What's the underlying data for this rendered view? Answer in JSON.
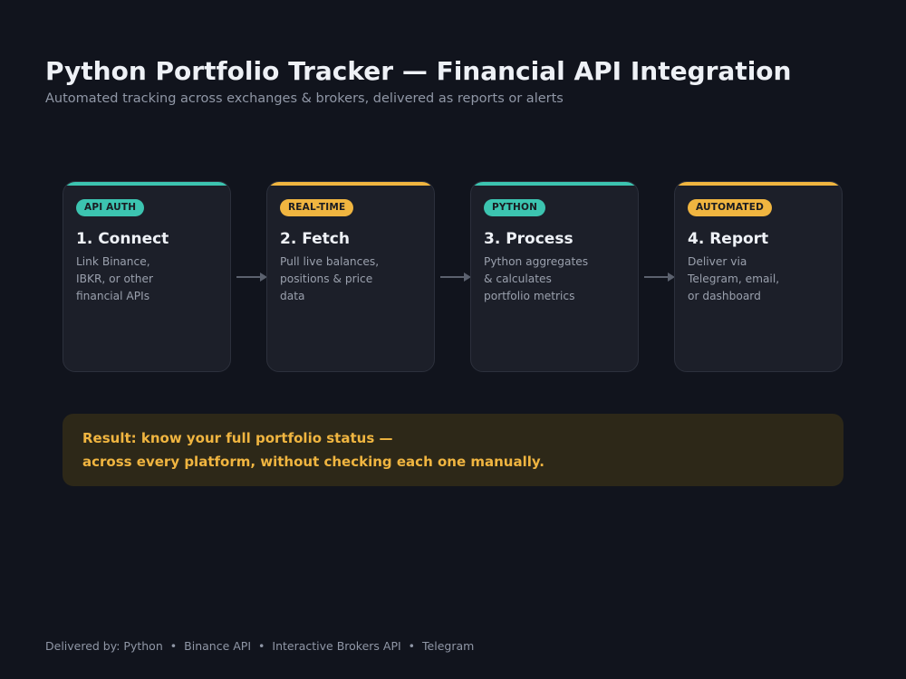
{
  "header": {
    "title": "Python Portfolio Tracker — Financial API Integration",
    "subtitle": "Automated tracking across exchanges & brokers, delivered as reports or alerts"
  },
  "colors": {
    "teal": "#3cc4b0",
    "amber": "#f0b540",
    "background": "#11141d",
    "card": "#1c1f29"
  },
  "steps": [
    {
      "badge": "API AUTH",
      "title": "1. Connect",
      "desc": [
        "Link Binance,",
        "IBKR, or other",
        "financial APIs"
      ]
    },
    {
      "badge": "REAL-TIME",
      "title": "2. Fetch",
      "desc": [
        "Pull live balances,",
        "positions & price",
        "data"
      ]
    },
    {
      "badge": "PYTHON",
      "title": "3. Process",
      "desc": [
        "Python aggregates",
        "& calculates",
        "portfolio metrics"
      ]
    },
    {
      "badge": "AUTOMATED",
      "title": "4. Report",
      "desc": [
        "Deliver via",
        "Telegram, email,",
        "or dashboard"
      ]
    }
  ],
  "result": {
    "line1": "Result: know your full portfolio status —",
    "line2": "across every platform, without checking each one manually."
  },
  "footer": {
    "prefix": "Delivered by: ",
    "items": [
      "Python",
      "Binance API",
      "Interactive Brokers API",
      "Telegram"
    ],
    "separator": "•"
  }
}
